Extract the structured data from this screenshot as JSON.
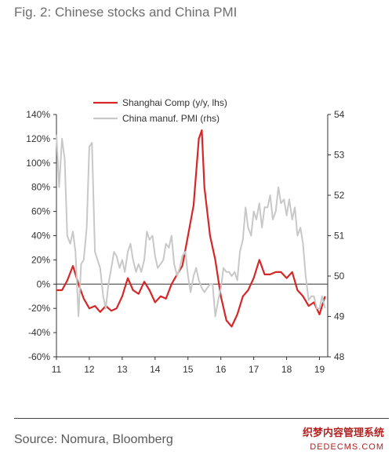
{
  "title": "Fig. 2: Chinese stocks and China PMI",
  "source": "Source: Nomura, Bloomberg",
  "watermark": {
    "line1": "织梦内容管理系统",
    "line2": "DEDECMS.COM"
  },
  "colors": {
    "shanghai": "#d62728",
    "pmi": "#c8c8c8"
  },
  "chart_data": {
    "type": "line",
    "title": "Fig. 2: Chinese stocks and China PMI",
    "xlim": [
      2011,
      2019.25
    ],
    "x_ticks": [
      "11",
      "12",
      "13",
      "14",
      "15",
      "16",
      "17",
      "18",
      "19"
    ],
    "ylim_left": [
      -60,
      140
    ],
    "y_ticks_left": [
      "140%",
      "120%",
      "100%",
      "80%",
      "60%",
      "40%",
      "20%",
      "0%",
      "-20%",
      "-40%",
      "-60%"
    ],
    "ylim_right": [
      48,
      54
    ],
    "y_ticks_right": [
      "54",
      "53",
      "52",
      "51",
      "50",
      "49",
      "48"
    ],
    "legend_position": "top-center",
    "series": [
      {
        "name": "Shanghai Comp (y/y, lhs)",
        "axis": "left",
        "color": "#d62728",
        "x": [
          2011.0,
          2011.17,
          2011.33,
          2011.5,
          2011.67,
          2011.83,
          2012.0,
          2012.17,
          2012.33,
          2012.5,
          2012.67,
          2012.83,
          2013.0,
          2013.17,
          2013.33,
          2013.5,
          2013.67,
          2013.83,
          2014.0,
          2014.17,
          2014.33,
          2014.5,
          2014.67,
          2014.83,
          2015.0,
          2015.17,
          2015.33,
          2015.42,
          2015.5,
          2015.67,
          2015.83,
          2016.0,
          2016.17,
          2016.33,
          2016.5,
          2016.67,
          2016.83,
          2017.0,
          2017.17,
          2017.33,
          2017.5,
          2017.67,
          2017.83,
          2018.0,
          2018.17,
          2018.33,
          2018.5,
          2018.67,
          2018.83,
          2019.0,
          2019.17
        ],
        "values": [
          -5,
          -5,
          3,
          15,
          0,
          -12,
          -20,
          -18,
          -23,
          -18,
          -22,
          -20,
          -10,
          5,
          -5,
          -8,
          2,
          -5,
          -15,
          -10,
          -12,
          0,
          8,
          15,
          40,
          65,
          120,
          127,
          80,
          40,
          20,
          -10,
          -30,
          -35,
          -25,
          -10,
          -5,
          5,
          20,
          8,
          8,
          10,
          10,
          5,
          10,
          -5,
          -10,
          -18,
          -15,
          -25,
          -10
        ]
      },
      {
        "name": "China manuf. PMI (rhs)",
        "axis": "right",
        "color": "#c8c8c8",
        "x": [
          2011.0,
          2011.08,
          2011.17,
          2011.25,
          2011.33,
          2011.42,
          2011.5,
          2011.58,
          2011.67,
          2011.75,
          2011.83,
          2011.92,
          2012.0,
          2012.08,
          2012.17,
          2012.25,
          2012.33,
          2012.42,
          2012.5,
          2012.58,
          2012.67,
          2012.75,
          2012.83,
          2012.92,
          2013.0,
          2013.08,
          2013.17,
          2013.25,
          2013.33,
          2013.42,
          2013.5,
          2013.58,
          2013.67,
          2013.75,
          2013.83,
          2013.92,
          2014.0,
          2014.08,
          2014.17,
          2014.25,
          2014.33,
          2014.42,
          2014.5,
          2014.58,
          2014.67,
          2014.75,
          2014.83,
          2014.92,
          2015.0,
          2015.08,
          2015.17,
          2015.25,
          2015.33,
          2015.42,
          2015.5,
          2015.58,
          2015.67,
          2015.75,
          2015.83,
          2015.92,
          2016.0,
          2016.08,
          2016.17,
          2016.25,
          2016.33,
          2016.42,
          2016.5,
          2016.58,
          2016.67,
          2016.75,
          2016.83,
          2016.92,
          2017.0,
          2017.08,
          2017.17,
          2017.25,
          2017.33,
          2017.42,
          2017.5,
          2017.58,
          2017.67,
          2017.75,
          2017.83,
          2017.92,
          2018.0,
          2018.08,
          2018.17,
          2018.25,
          2018.33,
          2018.42,
          2018.5,
          2018.58,
          2018.67,
          2018.75,
          2018.83,
          2018.92,
          2019.0,
          2019.08,
          2019.17
        ],
        "values": [
          53.5,
          52.2,
          53.4,
          52.9,
          51.0,
          50.8,
          51.1,
          50.6,
          49.0,
          50.3,
          50.4,
          51.2,
          53.2,
          53.3,
          50.6,
          50.4,
          50.2,
          49.5,
          49.2,
          49.8,
          50.2,
          50.6,
          50.5,
          50.2,
          50.4,
          50.1,
          50.6,
          50.8,
          50.4,
          50.1,
          50.3,
          50.1,
          50.4,
          51.1,
          50.9,
          51.0,
          50.5,
          50.2,
          50.3,
          50.4,
          50.8,
          50.7,
          51.0,
          50.3,
          50.0,
          50.2,
          50.5,
          50.6,
          50.0,
          49.6,
          50.0,
          50.2,
          49.9,
          49.7,
          49.6,
          49.7,
          49.8,
          49.8,
          49.0,
          49.4,
          49.7,
          50.2,
          50.1,
          50.1,
          50.0,
          50.1,
          49.9,
          50.6,
          50.9,
          51.7,
          51.2,
          51.0,
          51.6,
          51.4,
          51.8,
          51.2,
          51.7,
          51.7,
          52.0,
          51.4,
          51.6,
          52.2,
          51.8,
          51.9,
          51.5,
          51.9,
          51.4,
          51.7,
          51.0,
          51.2,
          50.8,
          50.0,
          49.4,
          49.5,
          49.5,
          49.2,
          49.2,
          49.5,
          49.2
        ]
      }
    ]
  }
}
